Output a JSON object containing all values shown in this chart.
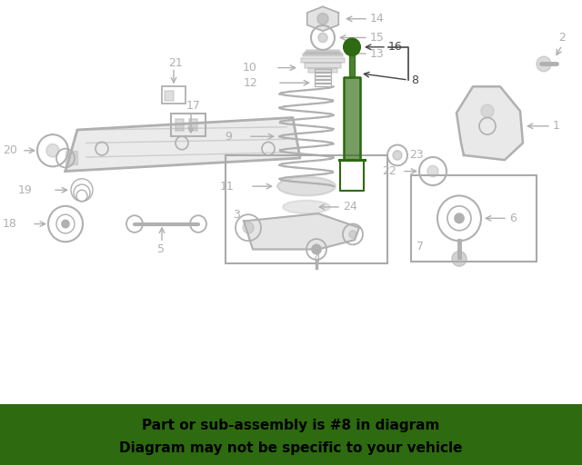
{
  "bg_color": "#ffffff",
  "banner_color": "#2d6a10",
  "banner_text_line1": "Part or sub-assembly is #8 in diagram",
  "banner_text_line2": "Diagram may not be specific to your vehicle",
  "banner_text_color": "#000000",
  "diagram_color": "#b0b0b0",
  "highlight_color": "#2d6a10",
  "fig_width": 6.4,
  "fig_height": 5.12
}
